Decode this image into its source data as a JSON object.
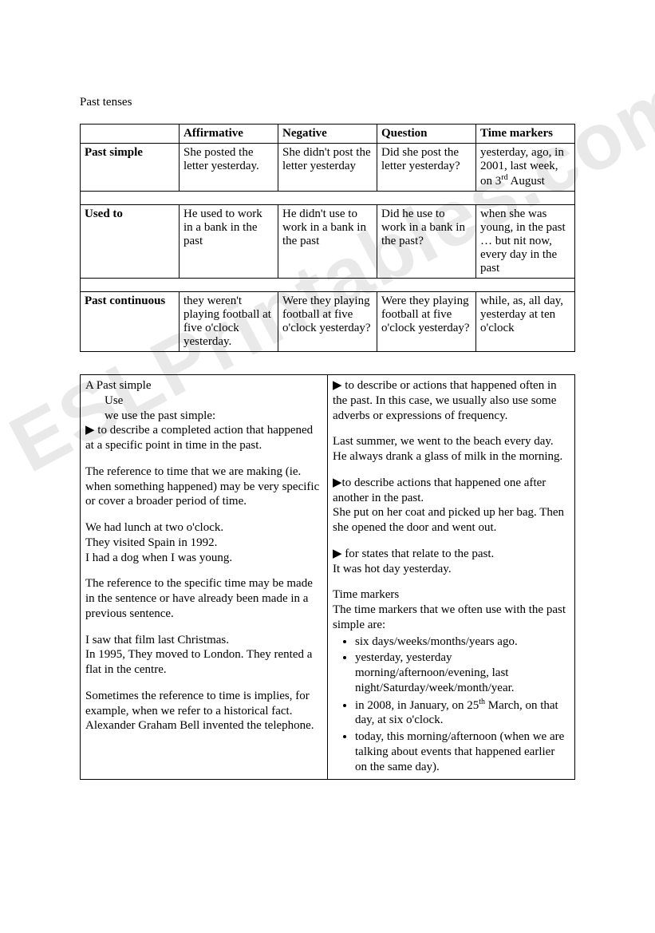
{
  "title": "Past tenses",
  "watermark_text": "ESLPrintables.com",
  "table1": {
    "headers": [
      "",
      "Affirmative",
      "Negative",
      "Question",
      "Time markers"
    ],
    "rows": [
      {
        "tense": "Past simple",
        "aff": "She posted the letter yesterday.",
        "neg": "She didn't post the letter yesterday",
        "q": "Did she post the letter yesterday?",
        "tm_pre": "yesterday, ago, in 2001, last week, on 3",
        "tm_sup": "rd",
        "tm_post": " August"
      },
      {
        "tense": "Used to",
        "aff": "He used to work in a bank in the past",
        "neg": "He didn't use to work in a bank in the past",
        "q": "Did he use to work in a bank in the past?",
        "tm": "when she was young, in the past … but nit now, every day in the past"
      },
      {
        "tense": "Past continuous",
        "aff": "they weren't playing football at five o'clock yesterday.",
        "neg": "Were they playing football at five o'clock yesterday?",
        "q": "Were they playing football at five o'clock yesterday?",
        "tm": "while, as, all day, yesterday at ten o'clock"
      }
    ]
  },
  "usage_left": {
    "h1": "A Past simple",
    "h2": "Use",
    "h3": "we use the past simple:",
    "bullet1": "▶ to describe a completed action that happened at a specific point in time in the past.",
    "p1": "The reference to time that we are making (ie. when something happened) may be very specific or cover a broader period of time.",
    "ex1a": "We had lunch at two o'clock.",
    "ex1b": "They visited Spain in 1992.",
    "ex1c": "I had a dog when I was young.",
    "p2": "The reference to the specific time may be made in the sentence or have already been made in a previous sentence.",
    "ex2a": "I saw that film last Christmas.",
    "ex2b": "In 1995, They moved to London. They rented a flat in the centre.",
    "p3": "Sometimes the reference to time is implies, for example, when we refer to a historical fact.",
    "ex3": "Alexander Graham Bell invented the telephone."
  },
  "usage_right": {
    "bullet1": "▶ to describe or actions that happened often in the past. In this case, we usually also use some adverbs or expressions of frequency.",
    "ex1a": "Last summer, we went to the beach every day.",
    "ex1b": "He always drank a glass of milk in the morning.",
    "bullet2": "▶to describe actions that happened one after another in the past.",
    "ex2": "She put on her coat and picked up her bag. Then she opened the door and went out.",
    "bullet3": "▶ for states that relate to the past.",
    "ex3": "It was hot day yesterday.",
    "tm_head": "Time markers",
    "tm_intro": "The time markers that we often use with the past simple are:",
    "tm_items": [
      "six days/weeks/months/years ago.",
      "yesterday, yesterday morning/afternoon/evening, last night/Saturday/week/month/year.",
      "",
      "today, this morning/afternoon (when we are talking about events that happened earlier on the same day)."
    ],
    "tm_item3_pre": "in 2008, in January, on 25",
    "tm_item3_sup": "th",
    "tm_item3_post": " March, on that day, at six o'clock."
  },
  "style": {
    "background": "#ffffff",
    "text_color": "#000000",
    "border_color": "#000000",
    "watermark_color": "#e9e9e9",
    "body_fontsize": 15,
    "watermark_fontsize": 100
  }
}
